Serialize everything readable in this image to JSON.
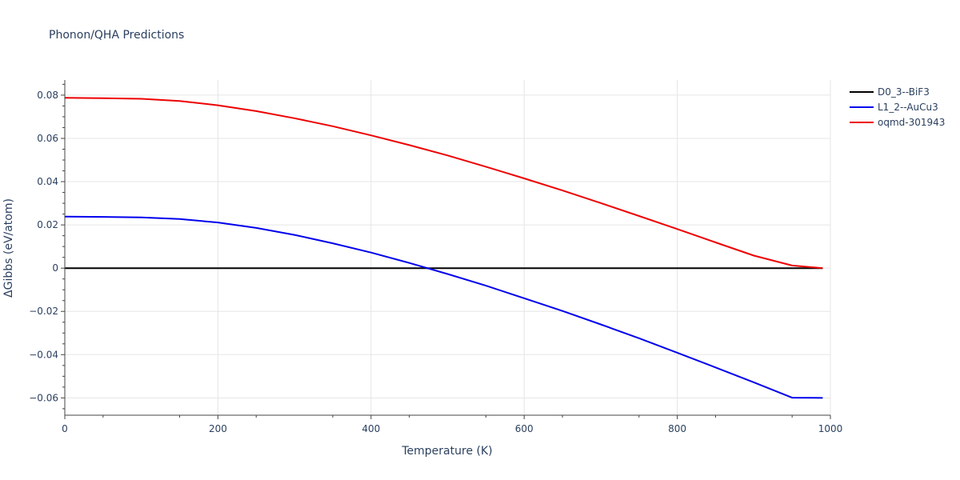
{
  "chart_data": {
    "type": "line",
    "title": "Phonon/QHA Predictions",
    "xlabel": "Temperature (K)",
    "ylabel": "ΔGibbs (eV/atom)",
    "xlim": [
      0,
      1000
    ],
    "ylim": [
      -0.068,
      0.087
    ],
    "xticks": [
      0,
      200,
      400,
      600,
      800,
      1000
    ],
    "xtick_labels": [
      "0",
      "200",
      "400",
      "600",
      "800",
      "1000"
    ],
    "yticks": [
      -0.06,
      -0.04,
      -0.02,
      0,
      0.02,
      0.04,
      0.06,
      0.08
    ],
    "ytick_labels": [
      "−0.06",
      "−0.04",
      "−0.02",
      "0",
      "0.02",
      "0.04",
      "0.06",
      "0.08"
    ],
    "grid": true,
    "legend_position": "top-right",
    "series": [
      {
        "name": "D0_3--BiF3",
        "color": "#000000",
        "x": [
          0,
          990
        ],
        "y": [
          0,
          0
        ]
      },
      {
        "name": "L1_2--AuCu3",
        "color": "#0000ee",
        "x": [
          0,
          50,
          100,
          150,
          200,
          250,
          300,
          350,
          400,
          450,
          500,
          550,
          600,
          650,
          700,
          750,
          800,
          850,
          900,
          950,
          990
        ],
        "y": [
          0.0238,
          0.0237,
          0.0235,
          0.0227,
          0.0211,
          0.0186,
          0.0154,
          0.0115,
          0.0072,
          0.0024,
          -0.0027,
          -0.0081,
          -0.0139,
          -0.0198,
          -0.026,
          -0.0324,
          -0.0391,
          -0.0459,
          -0.0528,
          -0.0599,
          -0.06
        ]
      },
      {
        "name": "oqmd-301943",
        "color": "#ee0000",
        "x": [
          0,
          50,
          100,
          150,
          200,
          250,
          300,
          350,
          400,
          450,
          500,
          550,
          600,
          650,
          700,
          750,
          800,
          850,
          900,
          950,
          990
        ],
        "y": [
          0.0788,
          0.0786,
          0.0783,
          0.0773,
          0.0753,
          0.0726,
          0.0693,
          0.0656,
          0.0614,
          0.0569,
          0.0521,
          0.0469,
          0.0415,
          0.0359,
          0.0301,
          0.0241,
          0.0181,
          0.0119,
          0.0058,
          0.0012,
          0.0
        ]
      }
    ]
  }
}
